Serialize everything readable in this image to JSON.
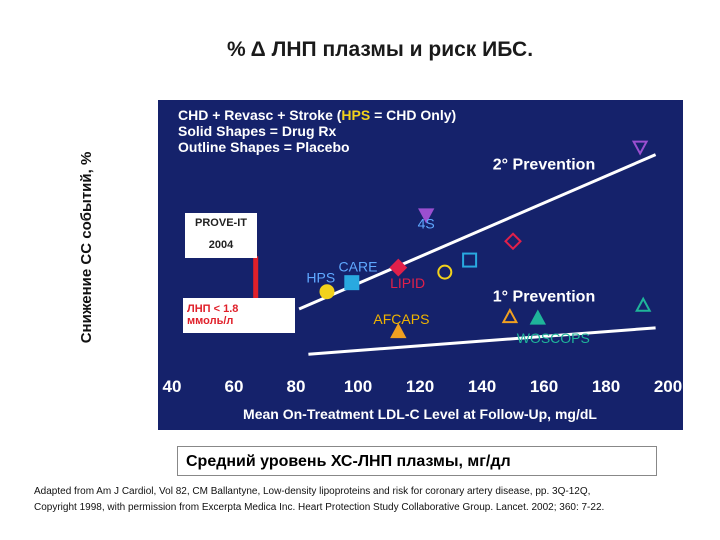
{
  "slide": {
    "title": "% Δ  ЛНП  плазмы и риск ИБС.",
    "y_label_outer": "Снижение СС событий, %",
    "x_label_outer": "Средний уровень ХС-ЛНП плазмы, мг/дл",
    "citation_line1": "Adapted from Am J Cardiol, Vol 82, CM Ballantyne, Low-density lipoproteins and risk for coronary artery disease, pp. 3Q-12Q,",
    "citation_line2": "Copyright 1998, with permission from Excerpta Medica Inc. Heart Protection Study Collaborative Group. Lancet. 2002; 360: 7-22.",
    "callout_prove_it": "PROVE-IT",
    "callout_year": "2004",
    "callout_target_line1": "ЛНП < 1.8",
    "callout_target_line2": "ммоль/л"
  },
  "colors": {
    "panel_bg": "#15226b",
    "axis_text": "#ffffff",
    "trend_line": "#ffffff",
    "study_label": "#5fa8ff",
    "hps_highlight": "#f2d21b",
    "arrow": "#e0202a",
    "afcaps_label": "#f0b400"
  },
  "chart_data": {
    "type": "scatter",
    "legend_lines": [
      "CHD + Revasc + Stroke (HPS = CHD Only)",
      "Solid Shapes = Drug Rx",
      "Outline Shapes = Placebo"
    ],
    "legend_hps_word": "HPS",
    "xlabel": "Mean On-Treatment LDL-C Level at Follow-Up, mg/dL",
    "ylabel": "",
    "xlim": [
      40,
      200
    ],
    "ylim": [
      0,
      30
    ],
    "x_ticks": [
      40,
      60,
      80,
      100,
      120,
      140,
      160,
      180,
      200
    ],
    "y_ticks": [
      0,
      5,
      10,
      15,
      20,
      25,
      30
    ],
    "trend_lines": [
      {
        "name": "2° Prevention",
        "x": [
          81,
          196
        ],
        "y": [
          6.5,
          27
        ]
      },
      {
        "name": "1° Prevention",
        "x": [
          84,
          196
        ],
        "y": [
          0.5,
          4
        ]
      }
    ],
    "studies": [
      {
        "name": "HPS",
        "x": 90,
        "y": 8.8,
        "shape": "circle",
        "filled": true,
        "color": "#f2d21b"
      },
      {
        "name": "CARE",
        "x": 98,
        "y": 10,
        "shape": "square",
        "filled": true,
        "color": "#29a9e0"
      },
      {
        "name": "LIPID",
        "x": 113,
        "y": 12,
        "shape": "diamond",
        "filled": true,
        "color": "#e0204a"
      },
      {
        "name": "4S",
        "x": 122,
        "y": 19,
        "shape": "triangle-down",
        "filled": true,
        "color": "#9b4fd0"
      },
      {
        "name": "HPS",
        "x": 128,
        "y": 11.4,
        "shape": "circle",
        "filled": false,
        "color": "#f2d21b"
      },
      {
        "name": "CARE",
        "x": 136,
        "y": 13,
        "shape": "square",
        "filled": false,
        "color": "#29a9e0"
      },
      {
        "name": "LIPID",
        "x": 150,
        "y": 15.5,
        "shape": "diamond",
        "filled": false,
        "color": "#e0204a"
      },
      {
        "name": "4S",
        "x": 191,
        "y": 28,
        "shape": "triangle-down",
        "filled": false,
        "color": "#9b4fd0"
      },
      {
        "name": "AFCAPS",
        "x": 113,
        "y": 3.5,
        "shape": "triangle-up",
        "filled": true,
        "color": "#f0a020"
      },
      {
        "name": "AFCAPS",
        "x": 149,
        "y": 5.5,
        "shape": "triangle-up",
        "filled": false,
        "color": "#f0a020"
      },
      {
        "name": "WOSCOPS",
        "x": 158,
        "y": 5.3,
        "shape": "triangle-up",
        "filled": true,
        "color": "#1fb59a"
      },
      {
        "name": "WOSCOPS",
        "x": 192,
        "y": 7,
        "shape": "triangle-up",
        "filled": false,
        "color": "#1fb59a"
      }
    ],
    "study_labels": [
      {
        "text": "4S",
        "x": 122,
        "y": 17.2,
        "color": "#5fa8ff"
      },
      {
        "text": "CARE",
        "x": 100,
        "y": 11.5,
        "color": "#5fa8ff"
      },
      {
        "text": "HPS",
        "x": 88,
        "y": 10,
        "color": "#5fa8ff"
      },
      {
        "text": "LIPID",
        "x": 116,
        "y": 9.3,
        "color": "#e0204a"
      },
      {
        "text": "AFCAPS",
        "x": 114,
        "y": 4.5,
        "color": "#f0b400"
      },
      {
        "text": "WOSCOPS",
        "x": 163,
        "y": 2,
        "color": "#1fb59a"
      },
      {
        "text": "2° Prevention",
        "x": 160,
        "y": 25,
        "color": "#ffffff"
      },
      {
        "text": "1° Prevention",
        "x": 160,
        "y": 7.5,
        "color": "#ffffff"
      }
    ],
    "arrow": {
      "from": [
        67,
        13.5
      ],
      "to": [
        67,
        6
      ]
    }
  }
}
